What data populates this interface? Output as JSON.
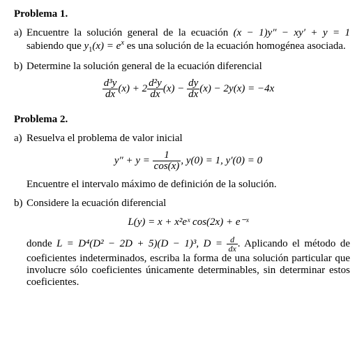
{
  "problem1": {
    "title": "Problema 1.",
    "a": {
      "label": "a)",
      "text_before": "Encuentre la solución general de la ecuación ",
      "eq_inline": "(x − 1)y″ − xy′ + y = 1",
      "text_mid": " sabiendo que ",
      "y1": "y",
      "y1_sub": "1",
      "y1_arg": "(x) = e",
      "y1_exp": "x",
      "text_after": " es una solución de la ecuación homogénea asociada."
    },
    "b": {
      "label": "b)",
      "text": "Determine la solución general de la ecuación diferencial",
      "eq": {
        "t1_num": "d³y",
        "t1_den": "dx",
        "t1_arg": "(x) + 2",
        "t2_num": "d²y",
        "t2_den": "dx",
        "t2_arg": "(x) − ",
        "t3_num": "dy",
        "t3_den": "dx",
        "t3_arg": "(x) − 2y(x) = −4x"
      }
    }
  },
  "problem2": {
    "title": "Problema 2.",
    "a": {
      "label": "a)",
      "text": "Resuelva el problema de valor inicial",
      "eq": {
        "lhs": "y″ + y = ",
        "frac_num": "1",
        "frac_den": "cos(x)",
        "sep": ",    ",
        "ic1": "y(0) = 1,    ",
        "ic2": "y′(0) = 0"
      },
      "tail": "Encuentre el intervalo máximo de definición de la solución."
    },
    "b": {
      "label": "b)",
      "text": "Considere la ecuación diferencial",
      "eq": "L(y) = x + x²eˣ cos(2x) + e⁻ˣ",
      "tail_before": "donde ",
      "L_expr": "L = D⁴(D² − 2D + 5)(D − 1)³, D = ",
      "D_frac_num": "d",
      "D_frac_den": "dx",
      "tail_after": ". Aplicando el método de coeficientes indeterminados, escriba la forma de una solución particular que involucre sólo coeficientes únicamente determinables, sin determinar estos coeficientes."
    }
  }
}
